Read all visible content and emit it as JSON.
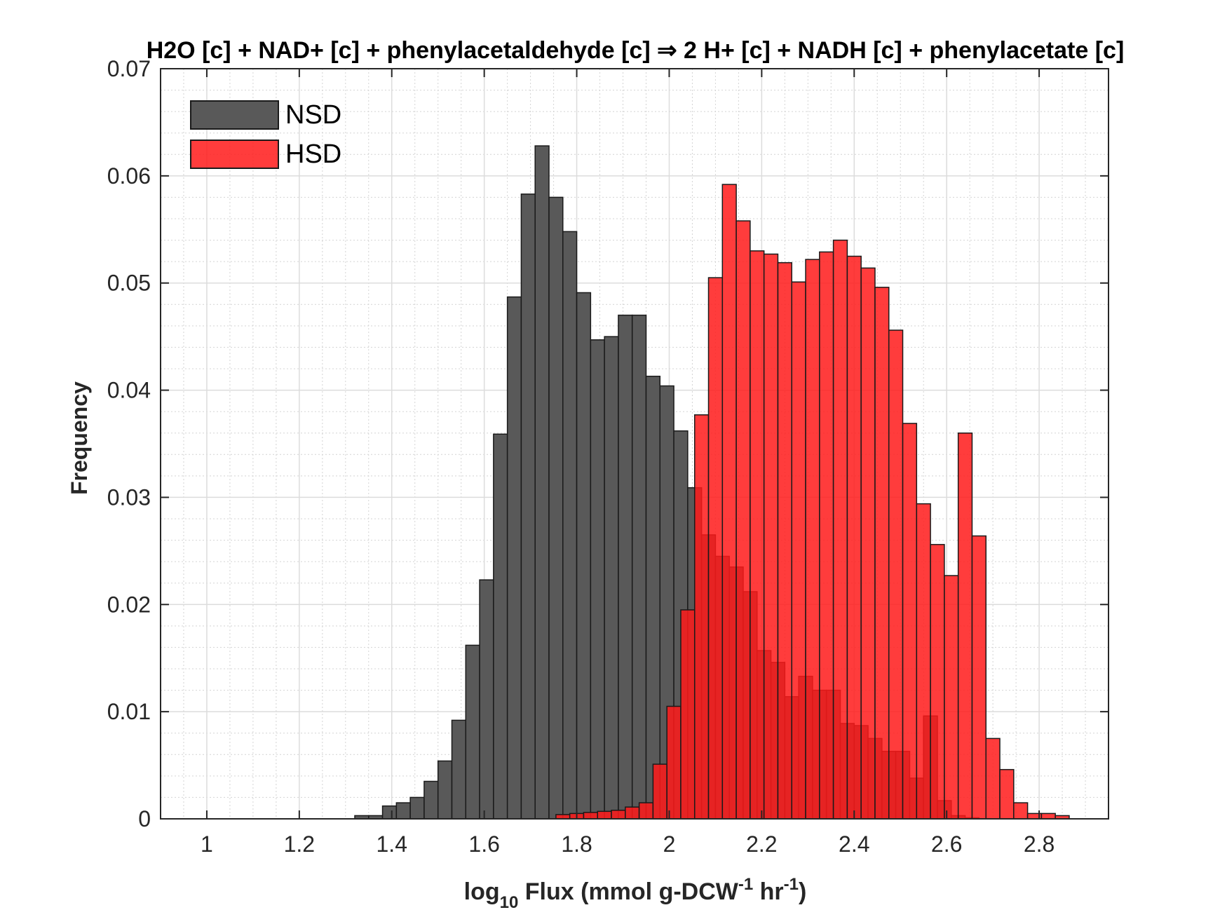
{
  "chart_data": {
    "type": "bar",
    "title": "H2O [c] + NAD+ [c] + phenylacetaldehyde [c] ⇒ 2 H+ [c] + NADH [c] + phenylacetate [c]",
    "xlabel_parts": {
      "prefix": "log",
      "subscript": "10",
      "mid": " Flux (mmol g-DCW",
      "sup1": "-1",
      "mid2": " hr",
      "sup2": "-1",
      "suffix": ")"
    },
    "ylabel": "Frequency",
    "xlim": [
      0.9,
      2.95
    ],
    "ylim": [
      0,
      0.07
    ],
    "xticks": [
      1,
      1.2,
      1.4,
      1.6,
      1.8,
      2,
      2.2,
      2.4,
      2.6,
      2.8
    ],
    "xtick_labels": [
      "1",
      "1.2",
      "1.4",
      "1.6",
      "1.8",
      "2",
      "2.2",
      "2.4",
      "2.6",
      "2.8"
    ],
    "yticks": [
      0,
      0.01,
      0.02,
      0.03,
      0.04,
      0.05,
      0.06,
      0.07
    ],
    "ytick_labels": [
      "0",
      "0.01",
      "0.02",
      "0.03",
      "0.04",
      "0.05",
      "0.06",
      "0.07"
    ],
    "grid": true,
    "minor_grid": true,
    "legend_position": "top-left",
    "bin_width": 0.03,
    "series": [
      {
        "name": "NSD",
        "color": "#595959",
        "edges_start": 1.32,
        "values": [
          0.0003,
          0.0003,
          0.0012,
          0.0015,
          0.002,
          0.0035,
          0.0054,
          0.0092,
          0.0162,
          0.0223,
          0.0359,
          0.0487,
          0.0583,
          0.0628,
          0.058,
          0.0548,
          0.0491,
          0.0447,
          0.045,
          0.047,
          0.047,
          0.0413,
          0.0404,
          0.0362,
          0.0309,
          0.0265,
          0.0245,
          0.0235,
          0.0212,
          0.0157,
          0.0146,
          0.0114,
          0.0133,
          0.012,
          0.012,
          0.0089,
          0.0087,
          0.0075,
          0.0063,
          0.0063,
          0.0038,
          0.0096,
          0.0017,
          0.0003,
          0.0001
        ]
      },
      {
        "name": "HSD",
        "color": "#ff1a1a",
        "edges_start": 1.755,
        "values": [
          0.0004,
          0.0005,
          0.0006,
          0.0007,
          0.0008,
          0.0011,
          0.0015,
          0.0051,
          0.0105,
          0.0195,
          0.0377,
          0.0505,
          0.0592,
          0.0558,
          0.053,
          0.0527,
          0.0519,
          0.0501,
          0.0522,
          0.0529,
          0.054,
          0.0525,
          0.0514,
          0.0496,
          0.0456,
          0.0369,
          0.0294,
          0.0256,
          0.0227,
          0.036,
          0.0264,
          0.0075,
          0.0046,
          0.0015,
          0.0005,
          0.0005,
          0.0003
        ]
      }
    ]
  }
}
